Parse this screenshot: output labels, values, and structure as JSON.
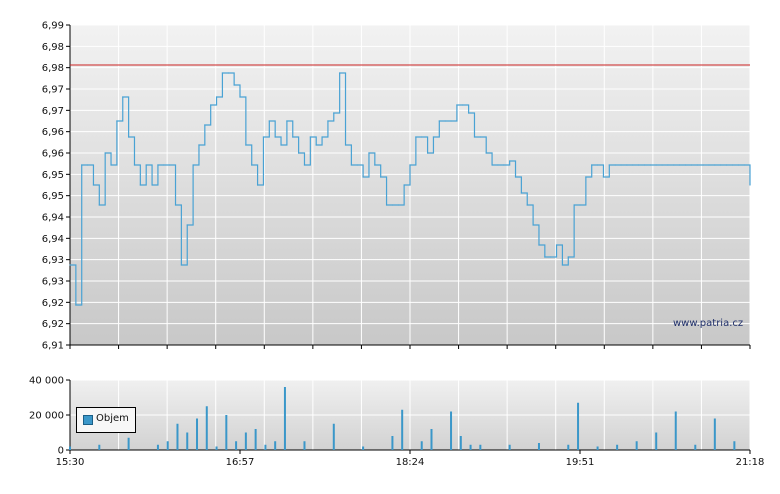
{
  "chart_data": [
    {
      "type": "line",
      "name": "price",
      "ylim": [
        6.91,
        6.99
      ],
      "y_ticks": [
        "6,99",
        "6,98",
        "6,98",
        "6,97",
        "6,97",
        "6,96",
        "6,96",
        "6,95",
        "6,95",
        "6,94",
        "6,94",
        "6,93",
        "6,93",
        "6,92",
        "6,92",
        "6,91"
      ],
      "reference_line": 6.98,
      "grid": true,
      "colors": {
        "line": "#49a2d4",
        "reference": "#cc2222",
        "grid": "#ffffff"
      },
      "series": [
        {
          "x": [
            "15:30",
            "15:33",
            "15:36",
            "15:39",
            "15:42",
            "15:45",
            "15:48",
            "15:51",
            "15:54",
            "15:57",
            "16:00",
            "16:03",
            "16:06",
            "16:09",
            "16:12",
            "16:15",
            "16:18",
            "16:21",
            "16:24",
            "16:27",
            "16:30",
            "16:33",
            "16:36",
            "16:39",
            "16:42",
            "16:45",
            "16:48",
            "16:51",
            "16:54",
            "16:57",
            "17:00",
            "17:03",
            "17:06",
            "17:09",
            "17:12",
            "17:15",
            "17:18",
            "17:21",
            "17:24",
            "17:27",
            "17:30",
            "17:33",
            "17:36",
            "17:39",
            "17:42",
            "17:45",
            "17:48",
            "17:51",
            "17:54",
            "17:57",
            "18:00",
            "18:03",
            "18:06",
            "18:09",
            "18:12",
            "18:15",
            "18:18",
            "18:21",
            "18:24",
            "18:27",
            "18:30",
            "18:33",
            "18:36",
            "18:39",
            "18:42",
            "18:45",
            "18:48",
            "18:51",
            "18:54",
            "18:57",
            "19:00",
            "19:03",
            "19:06",
            "19:09",
            "19:12",
            "19:15",
            "19:18",
            "19:21",
            "19:24",
            "19:27",
            "19:30",
            "19:33",
            "19:36",
            "19:39",
            "19:42",
            "19:45",
            "19:48",
            "19:51",
            "19:54",
            "19:57",
            "20:00",
            "20:03",
            "20:06",
            "20:09",
            "20:12",
            "20:15",
            "20:18",
            "20:21",
            "20:24",
            "20:27",
            "20:30",
            "20:33",
            "20:36",
            "20:39",
            "20:42",
            "20:45",
            "20:48",
            "20:51",
            "20:54",
            "20:57",
            "21:00",
            "21:03",
            "21:06",
            "21:09",
            "21:12",
            "21:15",
            "21:18"
          ],
          "values": [
            6.93,
            6.92,
            6.955,
            6.955,
            6.95,
            6.945,
            6.958,
            6.955,
            6.966,
            6.972,
            6.962,
            6.955,
            6.95,
            6.955,
            6.95,
            6.955,
            6.955,
            6.955,
            6.945,
            6.93,
            6.94,
            6.955,
            6.96,
            6.965,
            6.97,
            6.972,
            6.978,
            6.978,
            6.975,
            6.972,
            6.96,
            6.955,
            6.95,
            6.962,
            6.966,
            6.962,
            6.96,
            6.966,
            6.962,
            6.958,
            6.955,
            6.962,
            6.96,
            6.962,
            6.966,
            6.968,
            6.978,
            6.96,
            6.955,
            6.955,
            6.952,
            6.958,
            6.955,
            6.952,
            6.945,
            6.945,
            6.945,
            6.95,
            6.955,
            6.962,
            6.962,
            6.958,
            6.962,
            6.966,
            6.966,
            6.966,
            6.97,
            6.97,
            6.968,
            6.962,
            6.962,
            6.958,
            6.955,
            6.955,
            6.955,
            6.956,
            6.952,
            6.948,
            6.945,
            6.94,
            6.935,
            6.932,
            6.932,
            6.935,
            6.93,
            6.932,
            6.945,
            6.945,
            6.952,
            6.955,
            6.955,
            6.952,
            6.955,
            6.955,
            6.955,
            6.955,
            6.955,
            6.955,
            6.955,
            6.955,
            6.955,
            6.955,
            6.955,
            6.955,
            6.955,
            6.955,
            6.955,
            6.955,
            6.955,
            6.955,
            6.955,
            6.955,
            6.955,
            6.955,
            6.955,
            6.955,
            6.95
          ]
        }
      ]
    },
    {
      "type": "bar",
      "name": "volume",
      "ylim": [
        0,
        40000
      ],
      "y_ticks": [
        "40 000",
        "20 000",
        "0"
      ],
      "x_ticks": [
        "15:30",
        "16:57",
        "18:24",
        "19:51",
        "21:18"
      ],
      "grid": true,
      "colors": {
        "bar": "#3a97c9"
      },
      "legend": {
        "label": "Objem",
        "placement": "bottom-left"
      },
      "series": [
        {
          "name": "Objem",
          "x": [
            "15:30",
            "15:45",
            "16:00",
            "16:15",
            "16:20",
            "16:25",
            "16:30",
            "16:35",
            "16:40",
            "16:45",
            "16:50",
            "16:55",
            "17:00",
            "17:05",
            "17:10",
            "17:15",
            "17:20",
            "17:30",
            "17:45",
            "18:00",
            "18:15",
            "18:20",
            "18:30",
            "18:35",
            "18:45",
            "18:50",
            "18:55",
            "19:00",
            "19:15",
            "19:30",
            "19:45",
            "19:50",
            "20:00",
            "20:10",
            "20:20",
            "20:30",
            "20:40",
            "20:50",
            "21:00",
            "21:10"
          ],
          "values": [
            2000,
            3000,
            7000,
            3000,
            5000,
            15000,
            10000,
            18000,
            25000,
            2000,
            20000,
            5000,
            10000,
            12000,
            3000,
            5000,
            36000,
            5000,
            15000,
            2000,
            8000,
            23000,
            5000,
            12000,
            22000,
            8000,
            3000,
            3000,
            3000,
            4000,
            3000,
            27000,
            2000,
            3000,
            5000,
            10000,
            22000,
            3000,
            18000,
            5000
          ]
        }
      ]
    }
  ],
  "watermark": "www.patria.cz",
  "legend_label": "Objem"
}
